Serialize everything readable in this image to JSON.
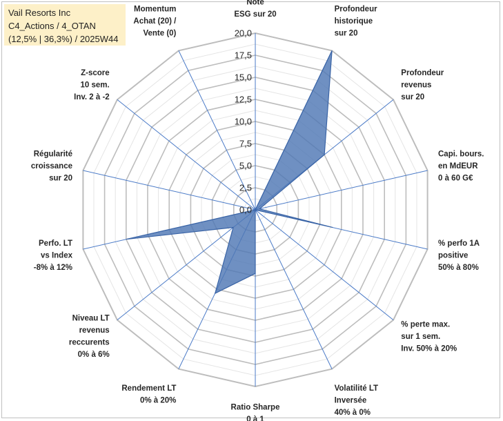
{
  "title_box": {
    "line1": "Vail Resorts Inc",
    "line2": "C4_Actions / 4_OTAN",
    "line3": "(12,5% | 36,3%) / 2025W44"
  },
  "colors": {
    "grid": "#c8c8c8",
    "spoke": "#4a7ac7",
    "fill": "#4f78b5",
    "stroke": "#3a64a6",
    "title_bg": "#fdf0c8"
  },
  "chart_data": {
    "type": "radar",
    "title": "",
    "rlim": [
      0,
      20
    ],
    "tick_step": 2.5,
    "tick_labels": [
      "0,0",
      "2,5",
      "5,0",
      "7,5",
      "10,0",
      "12,5",
      "15,0",
      "17,5",
      "20,0"
    ],
    "minor_rings": 16,
    "axes": [
      {
        "label": [
          "Note",
          "ESG sur 20"
        ],
        "value": 0
      },
      {
        "label": [
          "Profondeur",
          "historique",
          "sur 20"
        ],
        "value": 20
      },
      {
        "label": [
          "Profondeur",
          "revenus",
          "sur 20"
        ],
        "value": 10
      },
      {
        "label": [
          "Capi. bours.",
          "en MdEUR",
          "0 à 60 G€"
        ],
        "value": 0.5
      },
      {
        "label": [
          "% perfo 1A",
          "positive",
          "50% à 80%"
        ],
        "value": 9
      },
      {
        "label": [
          "% perte max.",
          "sur 1 sem.",
          "Inv. 50% à 20%"
        ],
        "value": 0
      },
      {
        "label": [
          "Volatilité LT",
          "Inversée",
          "40% à 0%"
        ],
        "value": 0
      },
      {
        "label": [
          "Ratio Sharpe",
          "0 à 1"
        ],
        "value": 7.2
      },
      {
        "label": [
          "Rendement LT",
          "0% à 20%"
        ],
        "value": 10.5
      },
      {
        "label": [
          "Niveau LT",
          "revenus",
          "reccurents",
          "0% à 6%"
        ],
        "value": 3.2
      },
      {
        "label": [
          "Perfo. LT",
          "vs Index",
          "-8% à 12%"
        ],
        "value": 15
      },
      {
        "label": [
          "Régularité",
          "croissance",
          "sur 20"
        ],
        "value": 0
      },
      {
        "label": [
          "Z-score",
          "10 sem.",
          "Inv. 2 à -2"
        ],
        "value": 0
      },
      {
        "label": [
          "Momentum",
          "Achat (20) /",
          "Vente (0)"
        ],
        "value": 0
      }
    ]
  }
}
